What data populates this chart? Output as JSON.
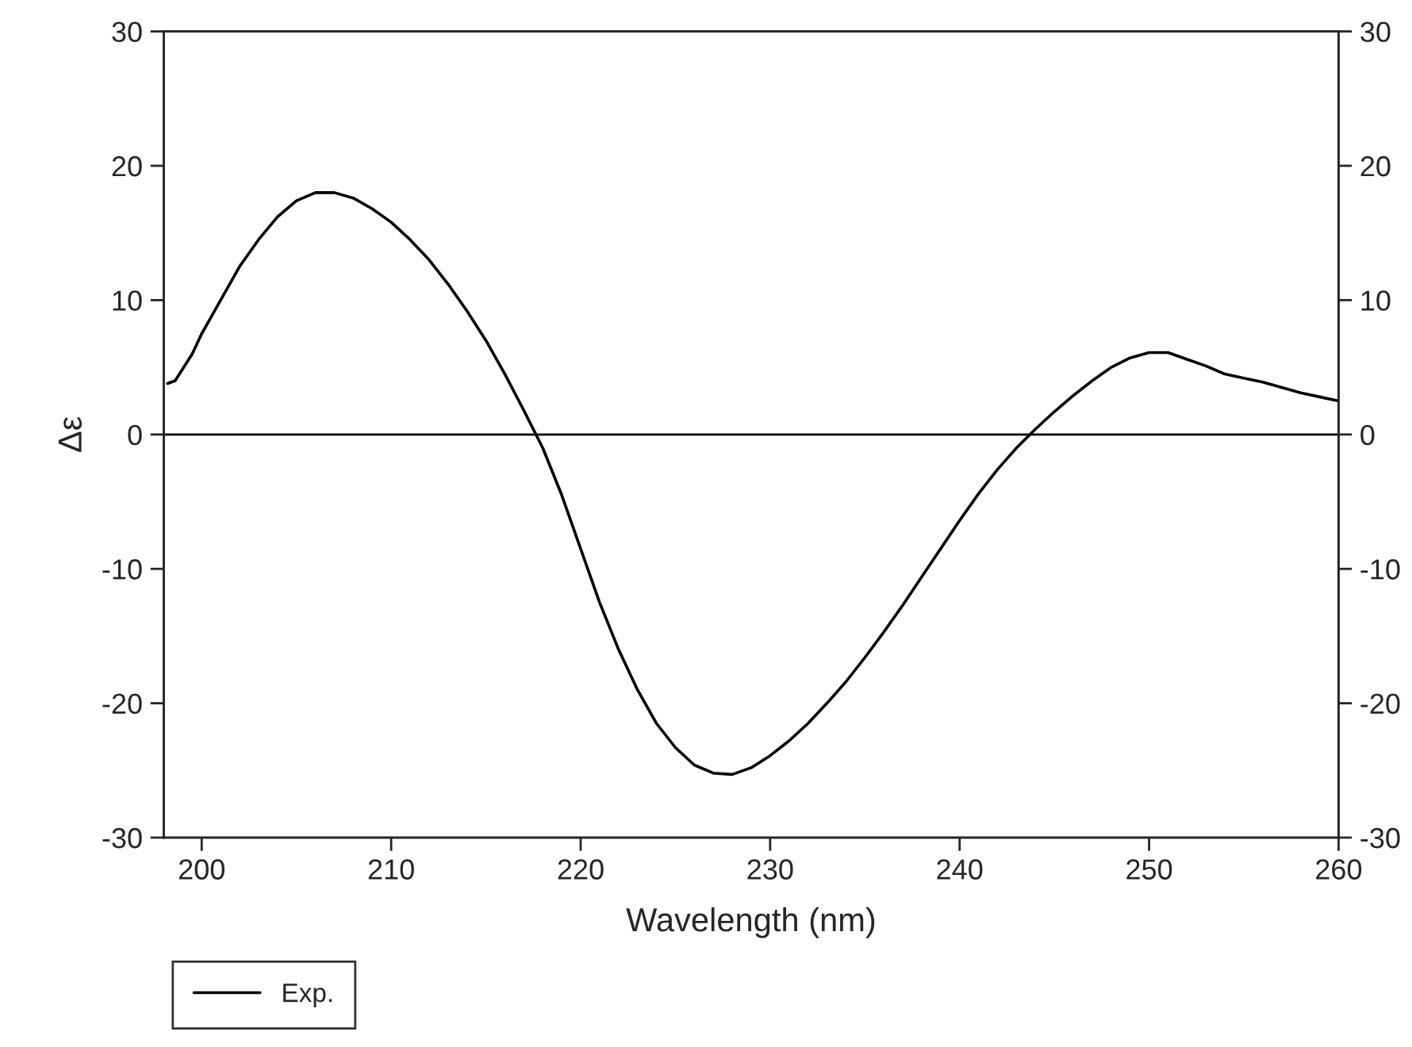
{
  "chart_data": {
    "type": "line",
    "xlabel": "Wavelength (nm)",
    "ylabel": "Δε",
    "xlim": [
      198,
      260
    ],
    "xticks": [
      200,
      210,
      220,
      230,
      240,
      250,
      260
    ],
    "ylim": [
      -30,
      30
    ],
    "yticks": [
      -30,
      -20,
      -10,
      0,
      10,
      20,
      30
    ],
    "y2lim": [
      -30,
      30
    ],
    "y2ticks": [
      -30,
      -20,
      -10,
      0,
      10,
      20,
      30
    ],
    "grid": false,
    "legend": "bottom left",
    "line_style": "solid",
    "marker": "none",
    "ref_lines": [
      {
        "axis": "y",
        "value": 0,
        "color": "#000000",
        "line_style": "solid"
      }
    ],
    "series": [
      {
        "name": "Exp.",
        "color": "#000000",
        "x": [
          198.2,
          198.6,
          199.5,
          200,
          201,
          202,
          203,
          204,
          205,
          206,
          207,
          208,
          209,
          210,
          211,
          212,
          213,
          214,
          215,
          216,
          217,
          218,
          219,
          220,
          221,
          222,
          223,
          224,
          225,
          226,
          227,
          228,
          229,
          230,
          231,
          232,
          233,
          234,
          235,
          236,
          237,
          238,
          239,
          240,
          241,
          242,
          243,
          244,
          245,
          246,
          247,
          248,
          249,
          250,
          251,
          252,
          253,
          254,
          255,
          256,
          257,
          258,
          259,
          260
        ],
        "values": [
          3.8,
          4.0,
          6,
          7.5,
          10,
          12.5,
          14.5,
          16.2,
          17.4,
          18.0,
          18.0,
          17.6,
          16.8,
          15.8,
          14.5,
          13,
          11.2,
          9.2,
          7,
          4.5,
          1.8,
          -1,
          -4.5,
          -8.5,
          -12.5,
          -16,
          -19,
          -21.5,
          -23.3,
          -24.6,
          -25.2,
          -25.3,
          -24.8,
          -23.9,
          -22.8,
          -21.5,
          -20,
          -18.4,
          -16.6,
          -14.7,
          -12.7,
          -10.6,
          -8.5,
          -6.4,
          -4.4,
          -2.6,
          -1.0,
          0.4,
          1.7,
          2.9,
          4.0,
          5.0,
          5.7,
          6.1,
          6.1,
          5.6,
          5.1,
          4.5,
          4.2,
          3.9,
          3.5,
          3.1,
          2.8,
          2.5
        ]
      }
    ]
  }
}
